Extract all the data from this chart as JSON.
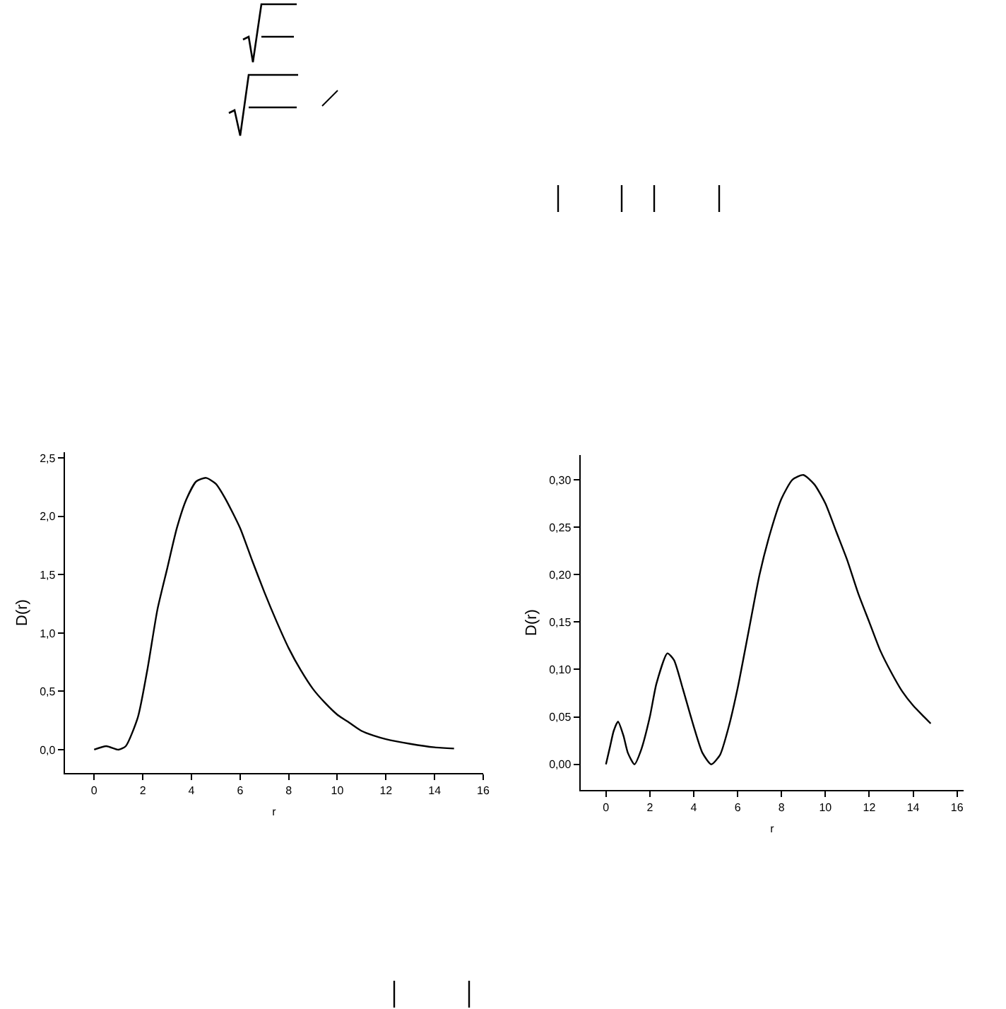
{
  "chart_data": [
    {
      "type": "line",
      "xlabel": "r",
      "ylabel": "D(r)",
      "xlim": [
        -1.2,
        16
      ],
      "ylim": [
        -0.2,
        2.55
      ],
      "xticks": [
        0,
        2,
        4,
        6,
        8,
        10,
        12,
        14,
        16
      ],
      "yticks": [
        {
          "value": 0,
          "label": "0,0"
        },
        {
          "value": 0.5,
          "label": "0,5"
        },
        {
          "value": 1,
          "label": "1,0"
        },
        {
          "value": 1.5,
          "label": "1,5"
        },
        {
          "value": 2,
          "label": "2,0"
        },
        {
          "value": 2.5,
          "label": "2,5"
        }
      ],
      "line_style": "solid",
      "marker": "none",
      "series": [
        {
          "color": "#000000",
          "x": [
            0,
            0.5,
            1,
            1.3,
            1.8,
            2.2,
            2.6,
            3,
            3.4,
            3.8,
            4.2,
            4.6,
            5,
            5.4,
            6,
            6.5,
            7,
            7.5,
            8,
            8.5,
            9,
            9.5,
            10,
            10.5,
            11,
            11.5,
            12,
            13,
            14,
            14.8
          ],
          "values": [
            0,
            0.03,
            0,
            0.03,
            0.28,
            0.7,
            1.2,
            1.55,
            1.9,
            2.15,
            2.3,
            2.33,
            2.28,
            2.15,
            1.9,
            1.62,
            1.35,
            1.1,
            0.87,
            0.68,
            0.52,
            0.4,
            0.3,
            0.23,
            0.16,
            0.12,
            0.09,
            0.05,
            0.02,
            0.01
          ]
        }
      ]
    },
    {
      "type": "line",
      "xlabel": "r",
      "ylabel": "D(r)",
      "xlim": [
        -1.15,
        16.3
      ],
      "ylim": [
        -0.027,
        0.326
      ],
      "xticks": [
        0,
        2,
        4,
        6,
        8,
        10,
        12,
        14,
        16
      ],
      "yticks": [
        {
          "value": 0,
          "label": "0,00"
        },
        {
          "value": 0.05,
          "label": "0,05"
        },
        {
          "value": 0.1,
          "label": "0,10"
        },
        {
          "value": 0.15,
          "label": "0,15"
        },
        {
          "value": 0.2,
          "label": "0,20"
        },
        {
          "value": 0.25,
          "label": "0,25"
        },
        {
          "value": 0.3,
          "label": "0,30"
        }
      ],
      "line_style": "solid",
      "marker": "none",
      "series": [
        {
          "color": "#000000",
          "x": [
            0,
            0.2,
            0.35,
            0.55,
            0.8,
            1,
            1.3,
            1.6,
            2,
            2.3,
            2.8,
            3.1,
            3.5,
            4,
            4.4,
            4.8,
            5.2,
            5.6,
            6,
            6.5,
            7,
            7.5,
            8,
            8.5,
            9,
            9.5,
            10,
            10.5,
            11,
            11.5,
            12,
            12.5,
            13,
            13.5,
            14,
            14.5,
            14.8
          ],
          "values": [
            0,
            0.02,
            0.035,
            0.045,
            0.03,
            0.012,
            0,
            0.015,
            0.05,
            0.085,
            0.117,
            0.11,
            0.08,
            0.04,
            0.012,
            0,
            0.01,
            0.04,
            0.08,
            0.14,
            0.2,
            0.245,
            0.28,
            0.3,
            0.305,
            0.295,
            0.275,
            0.245,
            0.215,
            0.18,
            0.15,
            0.12,
            0.097,
            0.077,
            0.062,
            0.05,
            0.043
          ]
        }
      ]
    }
  ]
}
